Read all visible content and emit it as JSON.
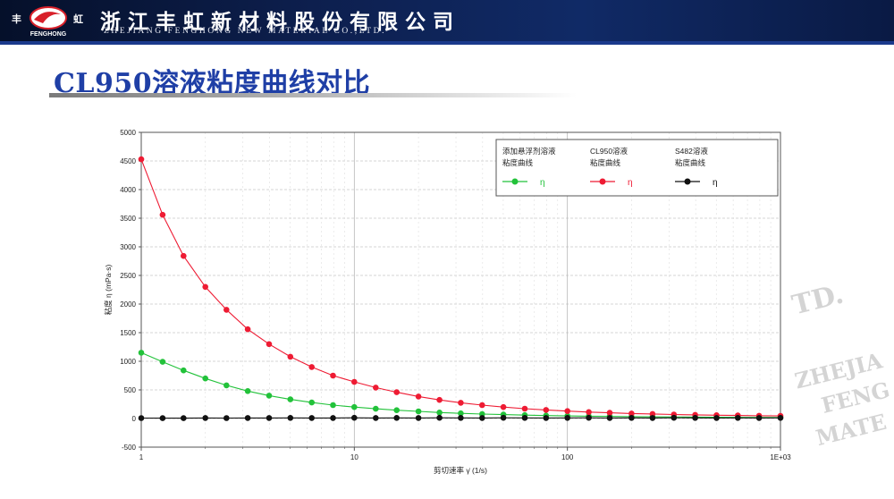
{
  "header": {
    "company_cn": "浙江丰虹新材料股份有限公司",
    "company_en": "ZHEJIANG FENGHONG NEW MATERIAL CO.,LTD.",
    "logo_text": "FENGHONG",
    "logo_char_left": "丰",
    "logo_char_right": "虹",
    "banner_color": "#0d1f4e"
  },
  "page": {
    "title": "CL950溶液粘度曲线对比"
  },
  "watermark": {
    "line1": "TD.",
    "line2": "ZHEJIA",
    "line3": "FENG",
    "line4": "MATE"
  },
  "chart_data": {
    "type": "line",
    "x_scale": "log",
    "xlim": [
      1,
      1000
    ],
    "ylim": [
      -500,
      5000
    ],
    "y_ticks": [
      -500,
      0,
      500,
      1000,
      1500,
      2000,
      2500,
      3000,
      3500,
      4000,
      4500,
      5000
    ],
    "x_tick_labels": [
      "1",
      "10",
      "100",
      "1E+03"
    ],
    "xlabel": "剪切速率 γ̇ (1/s)",
    "ylabel": "粘度  η  (mPa·s)",
    "grid": true,
    "legend_position": "top-right",
    "x": [
      1,
      1.26,
      1.58,
      2,
      2.51,
      3.16,
      3.98,
      5.01,
      6.31,
      7.94,
      10,
      12.6,
      15.8,
      20,
      25.1,
      31.6,
      39.8,
      50.1,
      63.1,
      79.4,
      100,
      126,
      158,
      200,
      251,
      316,
      398,
      501,
      631,
      794,
      1000
    ],
    "series": [
      {
        "name": "添加悬浮剂溶液粘度曲线",
        "symbol": "η",
        "color": "#22c23a",
        "values": [
          1150,
          990,
          840,
          700,
          580,
          480,
          400,
          335,
          280,
          235,
          200,
          170,
          145,
          125,
          105,
          90,
          78,
          68,
          60,
          52,
          46,
          41,
          37,
          33,
          30,
          27,
          25,
          23,
          21,
          19,
          18
        ]
      },
      {
        "name": "CL950溶液粘度曲线",
        "symbol": "η",
        "color": "#ee1b33",
        "values": [
          4530,
          3560,
          2840,
          2300,
          1900,
          1560,
          1300,
          1080,
          900,
          750,
          640,
          540,
          460,
          385,
          325,
          275,
          235,
          200,
          172,
          150,
          130,
          113,
          100,
          88,
          79,
          71,
          64,
          58,
          53,
          49,
          45
        ]
      },
      {
        "name": "S482溶液粘度曲线",
        "symbol": "η",
        "color": "#111111",
        "values": [
          8,
          6,
          7,
          9,
          8,
          10,
          9,
          11,
          10,
          9,
          12,
          10,
          11,
          10,
          12,
          11,
          10,
          12,
          11,
          10,
          11,
          12,
          10,
          11,
          10,
          12,
          11,
          10,
          11,
          10,
          11
        ]
      }
    ]
  }
}
